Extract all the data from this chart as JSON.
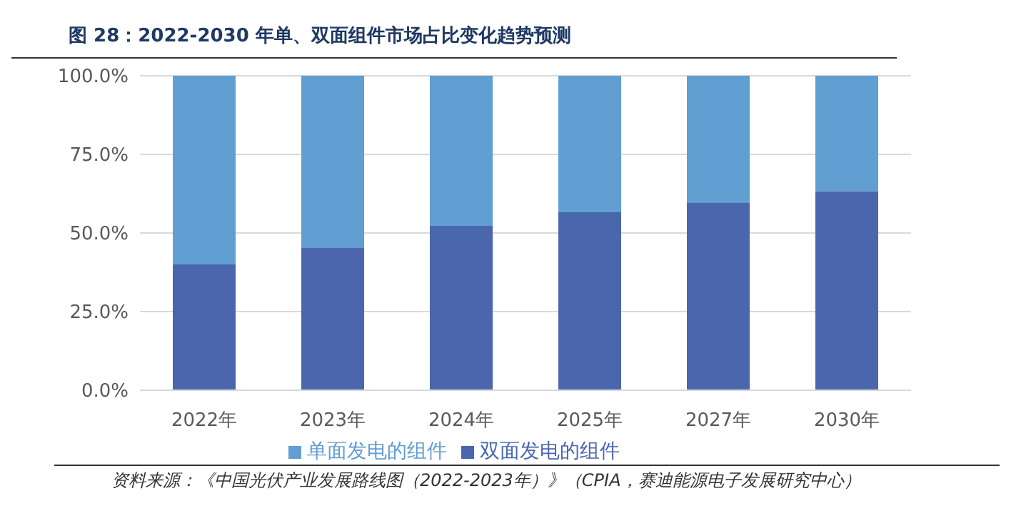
{
  "chart_data": {
    "type": "bar",
    "title": "图 28：2022-2030 年单、双面组件市场占比变化趋势预测",
    "categories": [
      "2022年",
      "2023年",
      "2024年",
      "2025年",
      "2027年",
      "2030年"
    ],
    "stacked": true,
    "series": [
      {
        "name": "双面发电的组件",
        "color": "#4a67ae",
        "values": [
          40,
          45.4,
          52.3,
          56.6,
          59.7,
          63.3
        ]
      },
      {
        "name": "单面发电的组件",
        "color": "#619ed2",
        "values": [
          60,
          54.6,
          47.7,
          43.4,
          40.3,
          36.7
        ]
      }
    ],
    "ylim": [
      0,
      100
    ],
    "yticks": [
      {
        "value": 0,
        "label": "0.0%"
      },
      {
        "value": 25,
        "label": "25.0%"
      },
      {
        "value": 50,
        "label": "50.0%"
      },
      {
        "value": 75,
        "label": "75.0%"
      },
      {
        "value": 100,
        "label": "100.0%"
      }
    ],
    "grid": "y",
    "legend": "bottom",
    "annotations": [
      "资料来源：《中国光伏产业发展路线图（2022-2023年）》（CPIA，赛迪能源电子发展研究中心）"
    ]
  }
}
